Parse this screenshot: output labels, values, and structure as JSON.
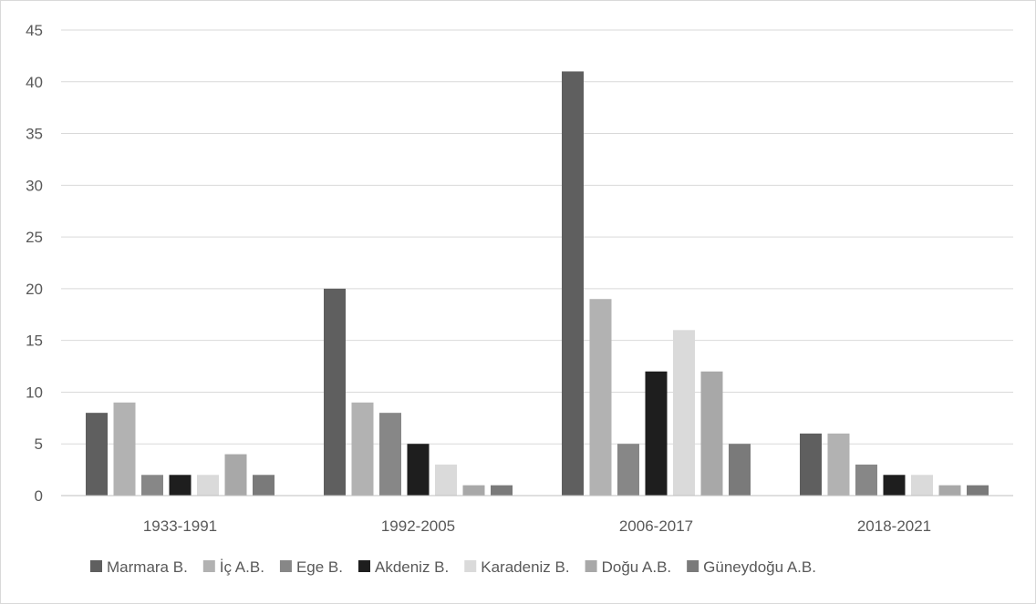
{
  "chart_data": {
    "type": "bar",
    "title": "",
    "xlabel": "",
    "ylabel": "",
    "categories": [
      "1933-1991",
      "1992-2005",
      "2006-2017",
      "2018-2021"
    ],
    "ylim": [
      0,
      45
    ],
    "yticks": [
      0,
      5,
      10,
      15,
      20,
      25,
      30,
      35,
      40,
      45
    ],
    "grid": true,
    "legend_position": "bottom",
    "series": [
      {
        "name": "Marmara B.",
        "color": "#5f5f5f",
        "values": [
          8,
          20,
          41,
          6
        ]
      },
      {
        "name": "İç A.B.",
        "color": "#b2b2b2",
        "values": [
          9,
          9,
          19,
          6
        ]
      },
      {
        "name": "Ege B.",
        "color": "#878787",
        "values": [
          2,
          8,
          5,
          3
        ]
      },
      {
        "name": "Akdeniz B.",
        "color": "#1e1e1e",
        "values": [
          2,
          5,
          12,
          2
        ]
      },
      {
        "name": "Karadeniz B.",
        "color": "#dadada",
        "values": [
          2,
          3,
          16,
          2
        ]
      },
      {
        "name": "Doğu A.B.",
        "color": "#a8a8a8",
        "values": [
          4,
          1,
          12,
          1
        ]
      },
      {
        "name": "Güneydoğu A.B.",
        "color": "#7a7a7a",
        "values": [
          2,
          1,
          5,
          1
        ]
      }
    ]
  }
}
